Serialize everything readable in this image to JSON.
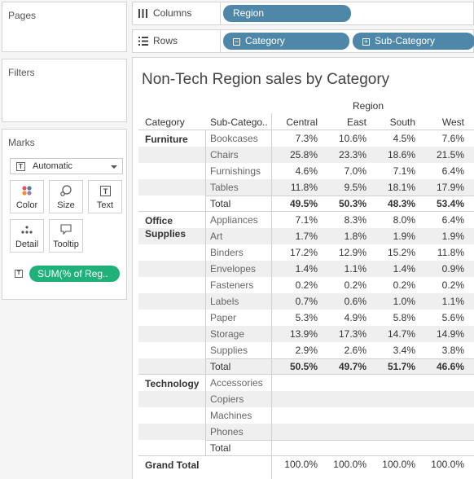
{
  "panels": {
    "pages": "Pages",
    "filters": "Filters",
    "marks": "Marks"
  },
  "marks": {
    "type": "Automatic",
    "buttons": [
      "Color",
      "Size",
      "Text",
      "Detail",
      "Tooltip"
    ],
    "measure_pill": "SUM(% of Reg.."
  },
  "shelves": {
    "columns_label": "Columns",
    "rows_label": "Rows",
    "columns_pills": [
      "Region"
    ],
    "rows_pills": [
      "Category",
      "Sub-Category"
    ]
  },
  "viz": {
    "title": "Non-Tech Region sales by Category",
    "region_header": "Region",
    "row_headers": [
      "Category",
      "Sub-Catego.."
    ],
    "regions": [
      "Central",
      "East",
      "South",
      "West"
    ],
    "categories": [
      {
        "name": "Furniture",
        "rows": [
          {
            "sub": "Bookcases",
            "values": [
              "7.3%",
              "10.6%",
              "4.5%",
              "7.6%"
            ]
          },
          {
            "sub": "Chairs",
            "values": [
              "25.8%",
              "23.3%",
              "18.6%",
              "21.5%"
            ]
          },
          {
            "sub": "Furnishings",
            "values": [
              "4.6%",
              "7.0%",
              "7.1%",
              "6.4%"
            ]
          },
          {
            "sub": "Tables",
            "values": [
              "11.8%",
              "9.5%",
              "18.1%",
              "17.9%"
            ]
          },
          {
            "sub": "Total",
            "values": [
              "49.5%",
              "50.3%",
              "48.3%",
              "53.4%"
            ],
            "total": true
          }
        ]
      },
      {
        "name": "Office Supplies",
        "rows": [
          {
            "sub": "Appliances",
            "values": [
              "7.1%",
              "8.3%",
              "8.0%",
              "6.4%"
            ]
          },
          {
            "sub": "Art",
            "values": [
              "1.7%",
              "1.8%",
              "1.9%",
              "1.9%"
            ]
          },
          {
            "sub": "Binders",
            "values": [
              "17.2%",
              "12.9%",
              "15.2%",
              "11.8%"
            ]
          },
          {
            "sub": "Envelopes",
            "values": [
              "1.4%",
              "1.1%",
              "1.4%",
              "0.9%"
            ]
          },
          {
            "sub": "Fasteners",
            "values": [
              "0.2%",
              "0.2%",
              "0.2%",
              "0.2%"
            ]
          },
          {
            "sub": "Labels",
            "values": [
              "0.7%",
              "0.6%",
              "1.0%",
              "1.1%"
            ]
          },
          {
            "sub": "Paper",
            "values": [
              "5.3%",
              "4.9%",
              "5.8%",
              "5.6%"
            ]
          },
          {
            "sub": "Storage",
            "values": [
              "13.9%",
              "17.3%",
              "14.7%",
              "14.9%"
            ]
          },
          {
            "sub": "Supplies",
            "values": [
              "2.9%",
              "2.6%",
              "3.4%",
              "3.8%"
            ]
          },
          {
            "sub": "Total",
            "values": [
              "50.5%",
              "49.7%",
              "51.7%",
              "46.6%"
            ],
            "total": true
          }
        ]
      },
      {
        "name": "Technology",
        "rows": [
          {
            "sub": "Accessories",
            "values": [
              "",
              "",
              "",
              ""
            ]
          },
          {
            "sub": "Copiers",
            "values": [
              "",
              "",
              "",
              ""
            ]
          },
          {
            "sub": "Machines",
            "values": [
              "",
              "",
              "",
              ""
            ]
          },
          {
            "sub": "Phones",
            "values": [
              "",
              "",
              "",
              ""
            ]
          },
          {
            "sub": "Total",
            "values": [
              "",
              "",
              "",
              ""
            ],
            "total": true
          }
        ]
      }
    ],
    "grand_total": {
      "label": "Grand Total",
      "values": [
        "100.0%",
        "100.0%",
        "100.0%",
        "100.0%"
      ]
    }
  },
  "colors": {
    "dimension_pill": "#4e87a7",
    "measure_pill": "#20b07a",
    "band": "#efefef"
  }
}
